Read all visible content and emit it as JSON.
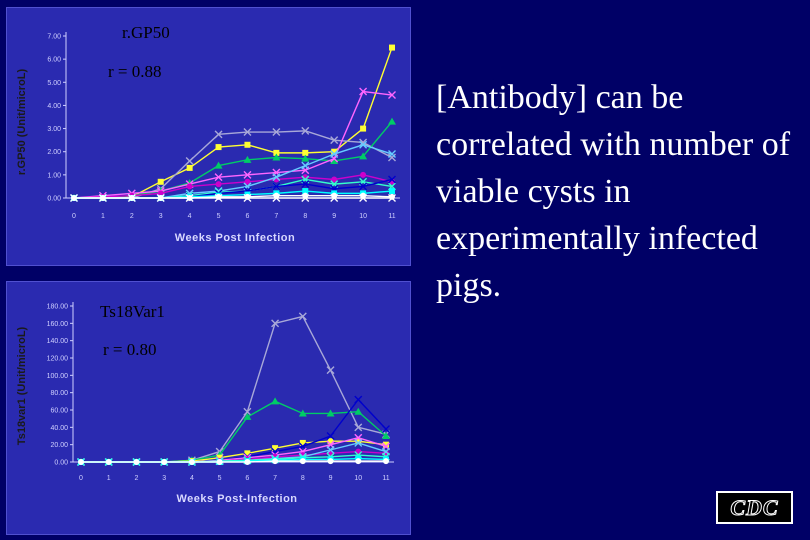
{
  "headline": "[Antibody] can be correlated  with number of viable cysts in experimentally infected pigs.",
  "logo_text": "CDC",
  "colors": {
    "background": "#000066",
    "panel": "#2a2ab0",
    "headline": "#ffffff"
  },
  "chart_data": [
    {
      "type": "line",
      "title": "",
      "annotation_name": "r.GP50",
      "annotation_r": "r  = 0.88",
      "xlabel": "Weeks Post Infection",
      "ylabel": "r.GP50 (Unit/microL)",
      "x": [
        0,
        1,
        2,
        3,
        4,
        5,
        6,
        7,
        8,
        9,
        10,
        11
      ],
      "xtick_labels": [
        "0",
        "1",
        "2",
        "3",
        "4",
        "5",
        "6",
        "7",
        "8",
        "9",
        "10",
        "11"
      ],
      "ytick_labels": [
        "0.00",
        "1.00",
        "2.00",
        "3.00",
        "4.00",
        "5.00",
        "6.00",
        "7.00"
      ],
      "ylim": [
        0,
        7
      ],
      "grid": false,
      "series": [
        {
          "color": "#ffff33",
          "marker": "square",
          "values": [
            0,
            0,
            0.05,
            0.7,
            1.3,
            2.2,
            2.3,
            1.95,
            1.95,
            2.0,
            3.0,
            6.5
          ]
        },
        {
          "color": "#a8a8d8",
          "marker": "x",
          "values": [
            0,
            0,
            0,
            0.4,
            1.6,
            2.75,
            2.85,
            2.85,
            2.9,
            2.5,
            2.4,
            1.75
          ]
        },
        {
          "color": "#00cc66",
          "marker": "triangle",
          "values": [
            0,
            0,
            0.1,
            0.3,
            0.65,
            1.4,
            1.65,
            1.75,
            1.7,
            1.6,
            1.8,
            3.3
          ]
        },
        {
          "color": "#ff66ff",
          "marker": "x",
          "values": [
            0,
            0.1,
            0.2,
            0.3,
            0.6,
            0.9,
            1.0,
            1.1,
            1.2,
            1.7,
            4.6,
            4.45
          ]
        },
        {
          "color": "#cc00cc",
          "marker": "circle",
          "values": [
            0,
            0.05,
            0.1,
            0.2,
            0.5,
            0.6,
            0.7,
            0.8,
            0.9,
            0.8,
            1.0,
            0.7
          ]
        },
        {
          "color": "#66ccff",
          "marker": "x",
          "values": [
            0,
            0,
            0,
            0,
            0.2,
            0.3,
            0.5,
            0.9,
            1.4,
            1.9,
            2.3,
            1.9
          ]
        },
        {
          "color": "#33ffcc",
          "marker": "x",
          "values": [
            0,
            0,
            0,
            0,
            0.1,
            0.25,
            0.3,
            0.5,
            0.8,
            0.6,
            0.7,
            0.5
          ]
        },
        {
          "color": "#0000cc",
          "marker": "x",
          "values": [
            0,
            0,
            0,
            0,
            0.05,
            0.2,
            0.3,
            0.5,
            0.6,
            0.4,
            0.5,
            0.8
          ]
        },
        {
          "color": "#00ffff",
          "marker": "square",
          "values": [
            0,
            0,
            0,
            0,
            0.05,
            0.1,
            0.15,
            0.2,
            0.3,
            0.2,
            0.2,
            0.3
          ]
        },
        {
          "color": "#ffffff",
          "marker": "circle",
          "values": [
            0,
            0,
            0,
            0,
            0,
            0.05,
            0.05,
            0.1,
            0.1,
            0.1,
            0.1,
            0.05
          ]
        },
        {
          "color": "#ffffff",
          "marker": "x",
          "values": [
            0,
            0,
            0,
            0,
            0,
            0,
            0,
            0,
            0,
            0,
            0,
            0
          ]
        }
      ]
    },
    {
      "type": "line",
      "title": "",
      "annotation_name": "Ts18Var1",
      "annotation_r": "r  = 0.80",
      "xlabel": "Weeks Post-Infection",
      "ylabel": "Ts18var1 (Unit/microL)",
      "x": [
        0,
        1,
        2,
        3,
        4,
        5,
        6,
        7,
        8,
        9,
        10,
        11
      ],
      "xtick_labels": [
        "0",
        "1",
        "2",
        "3",
        "4",
        "5",
        "6",
        "7",
        "8",
        "9",
        "10",
        "11"
      ],
      "ytick_labels": [
        "0.00",
        "20.00",
        "40.00",
        "60.00",
        "80.00",
        "100.00",
        "120.00",
        "140.00",
        "160.00",
        "180.00"
      ],
      "ylim": [
        0,
        180
      ],
      "grid": false,
      "series": [
        {
          "color": "#a8a8d8",
          "marker": "x",
          "values": [
            0,
            0,
            0,
            0,
            2,
            12,
            58,
            160,
            168,
            106,
            40,
            32
          ]
        },
        {
          "color": "#00cc66",
          "marker": "triangle",
          "values": [
            0,
            0,
            0,
            0,
            2,
            8,
            52,
            70,
            56,
            56,
            58,
            30
          ]
        },
        {
          "color": "#ffff33",
          "marker": "square",
          "values": [
            0,
            0,
            0,
            0,
            1,
            5,
            10,
            16,
            22,
            24,
            24,
            20
          ]
        },
        {
          "color": "#0000cc",
          "marker": "x",
          "values": [
            0,
            0,
            0,
            0,
            0,
            2,
            6,
            12,
            18,
            30,
            72,
            38
          ]
        },
        {
          "color": "#ff66ff",
          "marker": "x",
          "values": [
            0,
            0,
            0,
            0,
            0,
            2,
            5,
            8,
            12,
            20,
            28,
            18
          ]
        },
        {
          "color": "#cc00cc",
          "marker": "circle",
          "values": [
            0,
            0,
            0,
            0,
            0,
            1,
            3,
            6,
            8,
            10,
            12,
            10
          ]
        },
        {
          "color": "#66ccff",
          "marker": "x",
          "values": [
            0,
            0,
            0,
            0,
            0,
            1,
            2,
            4,
            6,
            14,
            22,
            12
          ]
        },
        {
          "color": "#33ffcc",
          "marker": "x",
          "values": [
            0,
            0,
            0,
            0,
            0,
            1,
            2,
            3,
            5,
            6,
            8,
            6
          ]
        },
        {
          "color": "#00ffff",
          "marker": "square",
          "values": [
            0,
            0,
            0,
            0,
            0,
            0,
            1,
            2,
            3,
            3,
            4,
            3
          ]
        },
        {
          "color": "#ffffff",
          "marker": "circle",
          "values": [
            0,
            0,
            0,
            0,
            0,
            0,
            0,
            1,
            1,
            1,
            1,
            1
          ]
        }
      ]
    }
  ]
}
